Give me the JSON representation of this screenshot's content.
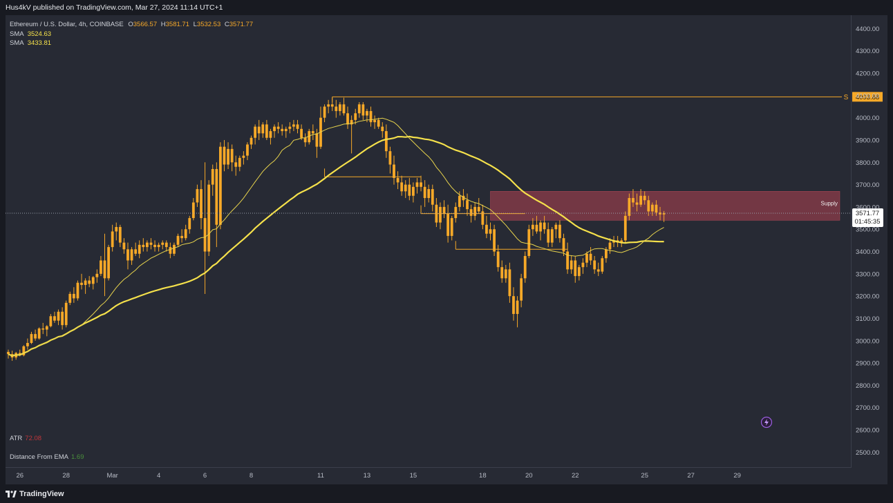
{
  "header": {
    "published": "Hus4kV published on TradingView.com, Mar 27, 2024 11:14 UTC+1"
  },
  "legend": {
    "symbol": "Ethereum / U.S. Dollar, 4h, COINBASE",
    "o_label": "O",
    "o": "3566.57",
    "h_label": "H",
    "h": "3581.71",
    "l_label": "L",
    "l": "3532.53",
    "c_label": "C",
    "c": "3571.77",
    "sma1_label": "SMA",
    "sma1": "3524.63",
    "sma2_label": "SMA",
    "sma2": "3433.81"
  },
  "indicators": {
    "atr_label": "ATR",
    "atr_value": "72.08",
    "dist_label": "Distance From EMA",
    "dist_value": "1.69"
  },
  "footer": {
    "brand": "TradingView"
  },
  "colors": {
    "background": "#272a34",
    "candle": "#f7a928",
    "sma_fast": "#e8d44d",
    "sma_slow": "#f5e14b",
    "supply_zone": "#8e3c49",
    "level_line": "#f7a928"
  },
  "chart_data": {
    "type": "candlestick",
    "symbol": "ETHUSD",
    "timeframe": "4h",
    "exchange": "COINBASE",
    "y_axis": {
      "min": 2430,
      "max": 4460,
      "ticks": [
        4400,
        4300,
        4200,
        4100,
        4000,
        3900,
        3800,
        3700,
        3600,
        3500,
        3400,
        3300,
        3200,
        3100,
        3000,
        2900,
        2800,
        2700,
        2600,
        2500
      ],
      "tick_labels": [
        "4400.00",
        "4300.00",
        "4200.00",
        "4100.00",
        "4000.00",
        "3900.00",
        "3800.00",
        "3700.00",
        "3600.00",
        "3500.00",
        "3400.00",
        "3300.00",
        "3200.00",
        "3100.00",
        "3000.00",
        "2900.00",
        "2800.00",
        "2700.00",
        "2600.00",
        "2500.00"
      ]
    },
    "x_axis": {
      "labels": [
        "26",
        "28",
        "Mar",
        "4",
        "6",
        "8",
        "11",
        "13",
        "15",
        "18",
        "20",
        "22",
        "25",
        "27",
        "29"
      ],
      "label_bars": [
        3,
        15,
        27,
        39,
        51,
        63,
        81,
        93,
        105,
        123,
        135,
        147,
        165,
        177,
        189
      ]
    },
    "candles": [
      [
        2950,
        2960,
        2920,
        2940
      ],
      [
        2940,
        2955,
        2910,
        2925
      ],
      [
        2925,
        2950,
        2915,
        2945
      ],
      [
        2945,
        2960,
        2930,
        2935
      ],
      [
        2935,
        2980,
        2930,
        2975
      ],
      [
        2975,
        3010,
        2960,
        2990
      ],
      [
        2990,
        3040,
        2985,
        3030
      ],
      [
        3030,
        3050,
        3000,
        3010
      ],
      [
        3010,
        3060,
        3005,
        3055
      ],
      [
        3055,
        3080,
        3030,
        3050
      ],
      [
        3050,
        3070,
        3020,
        3065
      ],
      [
        3065,
        3120,
        3060,
        3110
      ],
      [
        3110,
        3130,
        3080,
        3090
      ],
      [
        3090,
        3140,
        3070,
        3130
      ],
      [
        3130,
        3150,
        3050,
        3070
      ],
      [
        3070,
        3180,
        3060,
        3170
      ],
      [
        3170,
        3220,
        3160,
        3210
      ],
      [
        3210,
        3240,
        3170,
        3190
      ],
      [
        3190,
        3270,
        3180,
        3260
      ],
      [
        3260,
        3300,
        3230,
        3250
      ],
      [
        3250,
        3280,
        3210,
        3270
      ],
      [
        3270,
        3290,
        3240,
        3255
      ],
      [
        3255,
        3290,
        3230,
        3285
      ],
      [
        3285,
        3320,
        3260,
        3300
      ],
      [
        3300,
        3380,
        3290,
        3360
      ],
      [
        3360,
        3480,
        3200,
        3280
      ],
      [
        3280,
        3430,
        3270,
        3420
      ],
      [
        3420,
        3520,
        3400,
        3490
      ],
      [
        3490,
        3530,
        3450,
        3510
      ],
      [
        3510,
        3520,
        3420,
        3440
      ],
      [
        3440,
        3460,
        3390,
        3410
      ],
      [
        3410,
        3440,
        3320,
        3360
      ],
      [
        3360,
        3420,
        3340,
        3410
      ],
      [
        3410,
        3440,
        3380,
        3390
      ],
      [
        3390,
        3450,
        3370,
        3430
      ],
      [
        3430,
        3460,
        3400,
        3420
      ],
      [
        3420,
        3450,
        3400,
        3440
      ],
      [
        3440,
        3460,
        3410,
        3430
      ],
      [
        3430,
        3450,
        3400,
        3420
      ],
      [
        3420,
        3440,
        3400,
        3430
      ],
      [
        3430,
        3450,
        3410,
        3440
      ],
      [
        3440,
        3450,
        3400,
        3420
      ],
      [
        3420,
        3440,
        3370,
        3390
      ],
      [
        3390,
        3440,
        3380,
        3430
      ],
      [
        3430,
        3480,
        3420,
        3470
      ],
      [
        3470,
        3500,
        3440,
        3460
      ],
      [
        3460,
        3520,
        3450,
        3500
      ],
      [
        3500,
        3560,
        3480,
        3550
      ],
      [
        3550,
        3640,
        3540,
        3620
      ],
      [
        3620,
        3700,
        3600,
        3680
      ],
      [
        3680,
        3720,
        3500,
        3550
      ],
      [
        3550,
        3800,
        3210,
        3400
      ],
      [
        3400,
        3720,
        3380,
        3700
      ],
      [
        3700,
        3790,
        3650,
        3770
      ],
      [
        3770,
        3800,
        3420,
        3520
      ],
      [
        3520,
        3890,
        3500,
        3870
      ],
      [
        3870,
        3900,
        3760,
        3790
      ],
      [
        3790,
        3890,
        3770,
        3860
      ],
      [
        3860,
        3880,
        3760,
        3800
      ],
      [
        3800,
        3830,
        3740,
        3780
      ],
      [
        3780,
        3830,
        3760,
        3820
      ],
      [
        3820,
        3850,
        3790,
        3830
      ],
      [
        3830,
        3890,
        3810,
        3880
      ],
      [
        3880,
        3920,
        3860,
        3910
      ],
      [
        3910,
        3970,
        3880,
        3960
      ],
      [
        3960,
        3990,
        3900,
        3930
      ],
      [
        3930,
        3980,
        3910,
        3970
      ],
      [
        3970,
        3990,
        3900,
        3910
      ],
      [
        3910,
        3950,
        3880,
        3940
      ],
      [
        3940,
        3970,
        3910,
        3960
      ],
      [
        3960,
        3980,
        3930,
        3950
      ],
      [
        3950,
        3970,
        3920,
        3940
      ],
      [
        3940,
        3960,
        3910,
        3950
      ],
      [
        3950,
        3980,
        3930,
        3960
      ],
      [
        3960,
        3990,
        3940,
        3970
      ],
      [
        3970,
        3990,
        3930,
        3950
      ],
      [
        3950,
        3970,
        3900,
        3910
      ],
      [
        3910,
        3930,
        3870,
        3890
      ],
      [
        3890,
        3950,
        3880,
        3940
      ],
      [
        3940,
        3970,
        3900,
        3930
      ],
      [
        3930,
        3950,
        3820,
        3870
      ],
      [
        3870,
        4050,
        3860,
        4000
      ],
      [
        4000,
        4060,
        3980,
        4050
      ],
      [
        4050,
        4080,
        4020,
        4060
      ],
      [
        4060,
        4090,
        4030,
        4050
      ],
      [
        4050,
        4080,
        4000,
        4030
      ],
      [
        4030,
        4070,
        4010,
        4060
      ],
      [
        4060,
        4090,
        4010,
        4020
      ],
      [
        4020,
        4050,
        3950,
        3970
      ],
      [
        3970,
        4010,
        3840,
        3990
      ],
      [
        3990,
        4040,
        3970,
        4020
      ],
      [
        4020,
        4070,
        4000,
        4060
      ],
      [
        4060,
        4070,
        3990,
        4010
      ],
      [
        4010,
        4040,
        3980,
        4030
      ],
      [
        4030,
        4050,
        3960,
        3980
      ],
      [
        3980,
        4010,
        3950,
        3990
      ],
      [
        3990,
        4000,
        3950,
        3960
      ],
      [
        3960,
        3980,
        3910,
        3940
      ],
      [
        3940,
        3970,
        3820,
        3850
      ],
      [
        3850,
        3870,
        3750,
        3790
      ],
      [
        3790,
        3830,
        3700,
        3730
      ],
      [
        3730,
        3760,
        3680,
        3710
      ],
      [
        3710,
        3740,
        3650,
        3670
      ],
      [
        3670,
        3720,
        3640,
        3700
      ],
      [
        3700,
        3730,
        3630,
        3650
      ],
      [
        3650,
        3710,
        3620,
        3690
      ],
      [
        3690,
        3730,
        3660,
        3710
      ],
      [
        3710,
        3740,
        3670,
        3690
      ],
      [
        3690,
        3720,
        3600,
        3640
      ],
      [
        3640,
        3700,
        3620,
        3680
      ],
      [
        3680,
        3700,
        3580,
        3610
      ],
      [
        3610,
        3640,
        3510,
        3530
      ],
      [
        3530,
        3620,
        3500,
        3600
      ],
      [
        3600,
        3630,
        3550,
        3570
      ],
      [
        3570,
        3610,
        3440,
        3470
      ],
      [
        3470,
        3560,
        3450,
        3550
      ],
      [
        3550,
        3620,
        3530,
        3600
      ],
      [
        3600,
        3670,
        3580,
        3650
      ],
      [
        3650,
        3680,
        3600,
        3630
      ],
      [
        3630,
        3660,
        3560,
        3590
      ],
      [
        3590,
        3610,
        3530,
        3560
      ],
      [
        3560,
        3620,
        3540,
        3600
      ],
      [
        3600,
        3640,
        3570,
        3580
      ],
      [
        3580,
        3610,
        3500,
        3520
      ],
      [
        3520,
        3560,
        3460,
        3480
      ],
      [
        3480,
        3530,
        3450,
        3500
      ],
      [
        3500,
        3520,
        3380,
        3400
      ],
      [
        3400,
        3430,
        3310,
        3330
      ],
      [
        3330,
        3360,
        3260,
        3280
      ],
      [
        3280,
        3340,
        3260,
        3320
      ],
      [
        3320,
        3350,
        3170,
        3200
      ],
      [
        3200,
        3240,
        3090,
        3120
      ],
      [
        3120,
        3200,
        3060,
        3180
      ],
      [
        3180,
        3300,
        3150,
        3280
      ],
      [
        3280,
        3400,
        3260,
        3380
      ],
      [
        3380,
        3520,
        3370,
        3500
      ],
      [
        3500,
        3550,
        3470,
        3520
      ],
      [
        3520,
        3560,
        3480,
        3490
      ],
      [
        3490,
        3540,
        3450,
        3530
      ],
      [
        3530,
        3560,
        3480,
        3500
      ],
      [
        3500,
        3530,
        3420,
        3440
      ],
      [
        3440,
        3510,
        3420,
        3500
      ],
      [
        3500,
        3530,
        3460,
        3520
      ],
      [
        3520,
        3540,
        3440,
        3460
      ],
      [
        3460,
        3480,
        3380,
        3400
      ],
      [
        3400,
        3440,
        3300,
        3320
      ],
      [
        3320,
        3380,
        3300,
        3360
      ],
      [
        3360,
        3380,
        3260,
        3290
      ],
      [
        3290,
        3340,
        3270,
        3330
      ],
      [
        3330,
        3370,
        3300,
        3350
      ],
      [
        3350,
        3400,
        3330,
        3390
      ],
      [
        3390,
        3420,
        3340,
        3360
      ],
      [
        3360,
        3380,
        3300,
        3320
      ],
      [
        3320,
        3350,
        3290,
        3310
      ],
      [
        3310,
        3380,
        3300,
        3370
      ],
      [
        3370,
        3420,
        3350,
        3410
      ],
      [
        3410,
        3460,
        3390,
        3440
      ],
      [
        3440,
        3470,
        3420,
        3450
      ],
      [
        3450,
        3470,
        3420,
        3440
      ],
      [
        3440,
        3460,
        3420,
        3450
      ],
      [
        3450,
        3580,
        3440,
        3560
      ],
      [
        3560,
        3660,
        3540,
        3640
      ],
      [
        3640,
        3680,
        3600,
        3620
      ],
      [
        3620,
        3660,
        3580,
        3610
      ],
      [
        3610,
        3680,
        3600,
        3650
      ],
      [
        3650,
        3670,
        3610,
        3630
      ],
      [
        3630,
        3650,
        3560,
        3580
      ],
      [
        3580,
        3620,
        3560,
        3610
      ],
      [
        3610,
        3630,
        3560,
        3575
      ],
      [
        3575,
        3600,
        3540,
        3566.57
      ],
      [
        3566.57,
        3581.71,
        3532.53,
        3571.77
      ]
    ],
    "sma_fast": {
      "label": "SMA",
      "last_value": 3524.63
    },
    "sma_slow": {
      "label": "SMA",
      "last_value": 3433.81
    },
    "levels": [
      {
        "label": "S",
        "price": 4093.88,
        "price_label": "4093.88"
      }
    ],
    "last_price": {
      "price_label": "3571.77",
      "countdown": "01:45:35"
    },
    "zones": [
      {
        "label": "Supply",
        "top": 3670,
        "bottom": 3540
      }
    ],
    "structure_lines": [
      {
        "price": 3735
      },
      {
        "price": 3570
      },
      {
        "price": 3410
      }
    ]
  }
}
